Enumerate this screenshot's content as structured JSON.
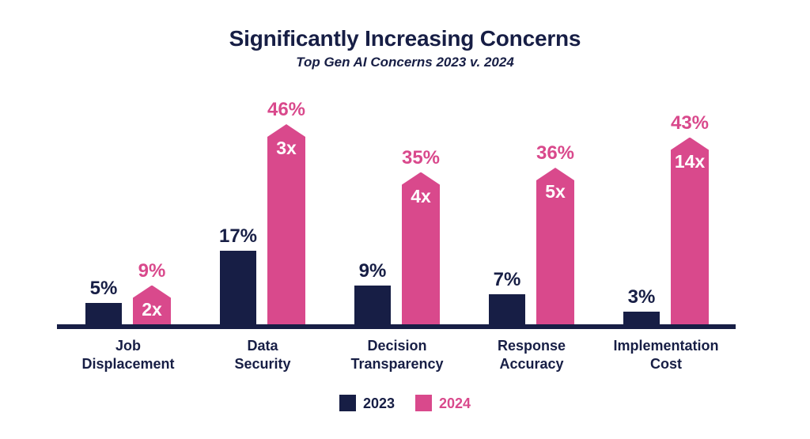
{
  "title": "Significantly Increasing Concerns",
  "subtitle": "Top Gen AI Concerns 2023 v. 2024",
  "colors": {
    "navy": "#171e45",
    "pink": "#d9498c",
    "background": "#ffffff",
    "bar_inner_label": "#ffffff"
  },
  "legend": {
    "items": [
      {
        "label": "2023",
        "color": "#171e45"
      },
      {
        "label": "2024",
        "color": "#d9498c"
      }
    ]
  },
  "chart_data": {
    "type": "bar",
    "title": "Significantly Increasing Concerns",
    "subtitle": "Top Gen AI Concerns 2023 v. 2024",
    "categories": [
      "Job\nDisplacement",
      "Data\nSecurity",
      "Decision\nTransparency",
      "Response\nAccuracy",
      "Implementation\nCost"
    ],
    "series": [
      {
        "name": "2023",
        "color": "#171e45",
        "values": [
          5,
          17,
          9,
          7,
          3
        ],
        "value_labels": [
          "5%",
          "17%",
          "9%",
          "7%",
          "3%"
        ]
      },
      {
        "name": "2024",
        "color": "#d9498c",
        "values": [
          9,
          46,
          35,
          36,
          43
        ],
        "value_labels": [
          "9%",
          "46%",
          "35%",
          "36%",
          "43%"
        ],
        "multipliers": [
          "2x",
          "3x",
          "4x",
          "5x",
          "14x"
        ]
      }
    ],
    "xlabel": "",
    "ylabel": "",
    "ylim": [
      0,
      50
    ],
    "grid": false,
    "axis_line": true,
    "legend_position": "bottom"
  }
}
